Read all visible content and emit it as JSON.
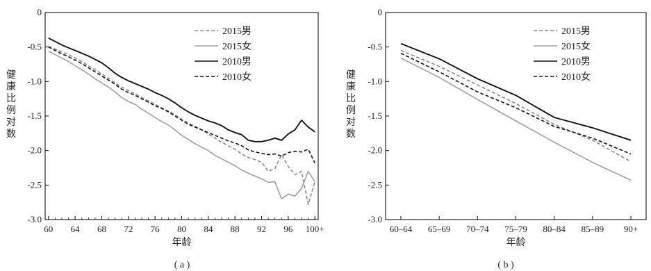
{
  "figure": {
    "panel_a_caption": "( a )",
    "panel_b_caption": "( b )"
  },
  "chart_data": [
    {
      "id": "a",
      "type": "line",
      "xlabel": "年龄",
      "ylabel": "健康比例对数",
      "ylim": [
        -3.0,
        0
      ],
      "yticks": [
        "0",
        "-0.5",
        "-1.0",
        "-1.5",
        "-2.0",
        "-2.5",
        "-3.0"
      ],
      "ytick_values": [
        0,
        -0.5,
        -1.0,
        -1.5,
        -2.0,
        -2.5,
        -3.0
      ],
      "xlim": [
        59.5,
        100.5
      ],
      "xticks": [
        "60",
        "64",
        "68",
        "72",
        "76",
        "80",
        "84",
        "88",
        "92",
        "96",
        "100+"
      ],
      "xtick_values": [
        60,
        64,
        68,
        72,
        76,
        80,
        84,
        88,
        92,
        96,
        100
      ],
      "x": [
        60,
        61,
        62,
        63,
        64,
        65,
        66,
        67,
        68,
        69,
        70,
        71,
        72,
        73,
        74,
        75,
        76,
        77,
        78,
        79,
        80,
        81,
        82,
        83,
        84,
        85,
        86,
        87,
        88,
        89,
        90,
        91,
        92,
        93,
        94,
        95,
        96,
        97,
        98,
        99,
        100
      ],
      "series": [
        {
          "name": "2015男",
          "style": "dashed",
          "color": "#888888",
          "values": [
            -0.49,
            -0.53,
            -0.57,
            -0.61,
            -0.66,
            -0.71,
            -0.77,
            -0.83,
            -0.89,
            -0.95,
            -1.02,
            -1.08,
            -1.13,
            -1.18,
            -1.23,
            -1.28,
            -1.33,
            -1.38,
            -1.43,
            -1.48,
            -1.55,
            -1.6,
            -1.65,
            -1.7,
            -1.76,
            -1.82,
            -1.88,
            -1.93,
            -1.98,
            -2.05,
            -2.1,
            -2.13,
            -2.17,
            -2.3,
            -2.26,
            -2.06,
            -2.23,
            -2.35,
            -2.3,
            -2.78,
            -2.45
          ]
        },
        {
          "name": "2015女",
          "style": "solid",
          "color": "#a0a0a0",
          "values": [
            -0.56,
            -0.61,
            -0.66,
            -0.71,
            -0.77,
            -0.83,
            -0.89,
            -0.96,
            -1.02,
            -1.08,
            -1.15,
            -1.23,
            -1.29,
            -1.33,
            -1.4,
            -1.46,
            -1.52,
            -1.58,
            -1.63,
            -1.7,
            -1.78,
            -1.84,
            -1.9,
            -1.95,
            -2.0,
            -2.07,
            -2.12,
            -2.17,
            -2.22,
            -2.28,
            -2.33,
            -2.37,
            -2.41,
            -2.46,
            -2.45,
            -2.7,
            -2.63,
            -2.66,
            -2.55,
            -2.3,
            -2.45
          ]
        },
        {
          "name": "2010男",
          "style": "solid",
          "color": "#111111",
          "values": [
            -0.37,
            -0.42,
            -0.47,
            -0.51,
            -0.55,
            -0.59,
            -0.63,
            -0.68,
            -0.73,
            -0.8,
            -0.88,
            -0.94,
            -0.99,
            -1.03,
            -1.07,
            -1.11,
            -1.16,
            -1.2,
            -1.25,
            -1.31,
            -1.38,
            -1.44,
            -1.49,
            -1.53,
            -1.57,
            -1.6,
            -1.64,
            -1.7,
            -1.74,
            -1.77,
            -1.85,
            -1.87,
            -1.87,
            -1.85,
            -1.82,
            -1.85,
            -1.76,
            -1.7,
            -1.56,
            -1.66,
            -1.73
          ]
        },
        {
          "name": "2010女",
          "style": "dashed",
          "color": "#111111",
          "values": [
            -0.5,
            -0.55,
            -0.6,
            -0.64,
            -0.69,
            -0.74,
            -0.8,
            -0.86,
            -0.92,
            -0.98,
            -1.04,
            -1.11,
            -1.16,
            -1.2,
            -1.25,
            -1.3,
            -1.35,
            -1.39,
            -1.44,
            -1.5,
            -1.56,
            -1.62,
            -1.66,
            -1.7,
            -1.74,
            -1.78,
            -1.82,
            -1.86,
            -1.89,
            -1.93,
            -1.99,
            -2.02,
            -2.04,
            -2.06,
            -2.05,
            -2.08,
            -2.03,
            -2.01,
            -2.02,
            -1.98,
            -2.18
          ]
        }
      ]
    },
    {
      "id": "b",
      "type": "line",
      "xlabel": "年龄",
      "ylabel": "健康比例对数",
      "ylim": [
        -3.0,
        0
      ],
      "yticks": [
        "0",
        "-0.5",
        "-1.0",
        "-1.5",
        "-2.0",
        "-2.5",
        "-3.0"
      ],
      "ytick_values": [
        0,
        -0.5,
        -1.0,
        -1.5,
        -2.0,
        -2.5,
        -3.0
      ],
      "categories": [
        "60–64",
        "65–69",
        "70–74",
        "75–79",
        "80–84",
        "85–89",
        "90+"
      ],
      "series": [
        {
          "name": "2015男",
          "style": "dashed",
          "color": "#888888",
          "values": [
            -0.55,
            -0.78,
            -1.05,
            -1.32,
            -1.62,
            -1.85,
            -2.16
          ]
        },
        {
          "name": "2015女",
          "style": "solid",
          "color": "#a0a0a0",
          "values": [
            -0.66,
            -0.94,
            -1.26,
            -1.57,
            -1.88,
            -2.17,
            -2.43
          ]
        },
        {
          "name": "2010男",
          "style": "solid",
          "color": "#111111",
          "values": [
            -0.45,
            -0.67,
            -0.96,
            -1.2,
            -1.52,
            -1.67,
            -1.85
          ]
        },
        {
          "name": "2010女",
          "style": "dashed",
          "color": "#111111",
          "values": [
            -0.59,
            -0.86,
            -1.15,
            -1.38,
            -1.65,
            -1.82,
            -2.05
          ]
        }
      ]
    }
  ]
}
